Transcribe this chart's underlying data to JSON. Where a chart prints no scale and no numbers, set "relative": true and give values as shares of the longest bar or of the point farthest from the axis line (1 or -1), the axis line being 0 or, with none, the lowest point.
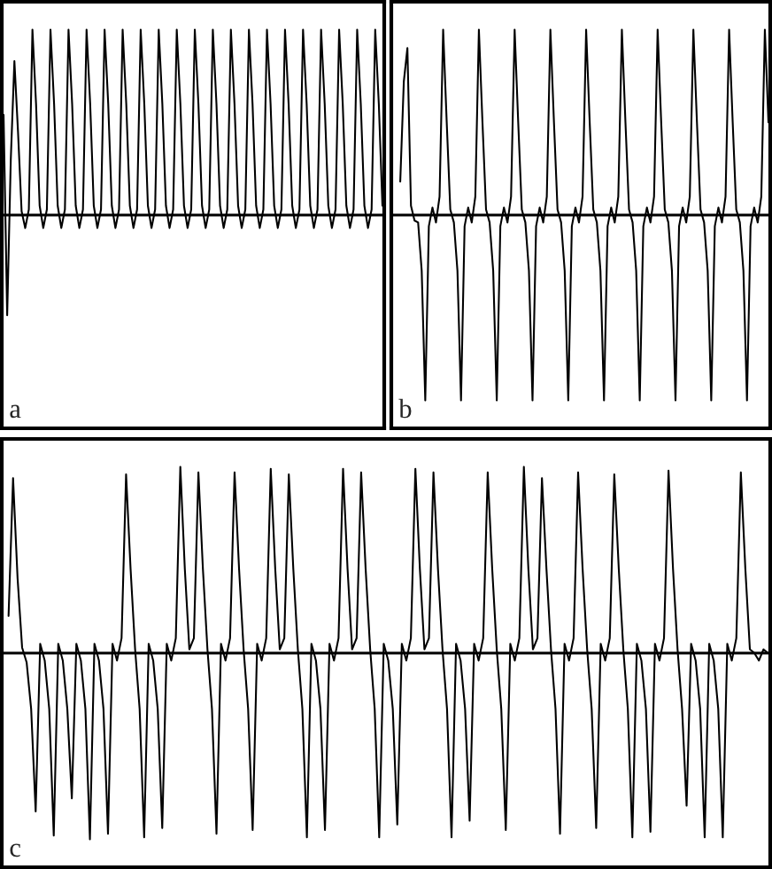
{
  "chart_data": [
    {
      "type": "line",
      "relative": true,
      "line_style": "solid",
      "annotations": [
        "a"
      ],
      "categories": [
        null,
        null,
        null,
        null,
        null,
        null,
        null,
        null,
        null,
        null,
        null,
        null,
        null,
        null,
        null,
        null,
        null,
        null,
        null,
        null,
        null,
        null,
        null,
        null,
        null,
        null,
        null,
        null,
        null,
        null,
        null,
        null,
        null,
        null,
        null,
        null,
        null,
        null,
        null,
        null,
        null,
        null,
        null,
        null,
        null,
        null,
        null,
        null,
        null,
        null,
        null,
        null,
        null,
        null,
        null,
        null,
        null,
        null,
        null,
        null,
        null,
        null,
        null,
        null,
        null,
        null,
        null,
        null,
        null,
        null,
        null,
        null,
        null,
        null,
        null,
        null,
        null,
        null,
        null,
        null,
        null,
        null,
        null,
        null,
        null,
        null,
        null,
        null,
        null,
        null,
        null,
        null,
        null,
        null,
        null,
        null,
        null,
        null,
        null,
        null,
        null,
        null,
        null,
        null,
        null,
        null
      ],
      "series": [
        {
          "color": "#000000",
          "values": [
            0.54,
            -0.54,
            0.3,
            0.83,
            0.45,
            0.02,
            -0.07,
            0.03,
            1.0,
            0.6,
            0.05,
            -0.07,
            0.03,
            1.0,
            0.6,
            0.05,
            -0.07,
            0.03,
            1.0,
            0.6,
            0.05,
            -0.07,
            0.03,
            1.0,
            0.6,
            0.05,
            -0.07,
            0.03,
            1.0,
            0.6,
            0.05,
            -0.07,
            0.03,
            1.0,
            0.6,
            0.05,
            -0.07,
            0.03,
            1.0,
            0.6,
            0.05,
            -0.07,
            0.03,
            1.0,
            0.6,
            0.05,
            -0.07,
            0.03,
            1.0,
            0.6,
            0.05,
            -0.07,
            0.03,
            1.0,
            0.6,
            0.05,
            -0.07,
            0.03,
            1.0,
            0.6,
            0.05,
            -0.07,
            0.03,
            1.0,
            0.6,
            0.05,
            -0.07,
            0.03,
            1.0,
            0.6,
            0.05,
            -0.07,
            0.03,
            1.0,
            0.6,
            0.05,
            -0.07,
            0.03,
            1.0,
            0.6,
            0.05,
            -0.07,
            0.03,
            1.0,
            0.6,
            0.05,
            -0.07,
            0.03,
            1.0,
            0.6,
            0.05,
            -0.07,
            0.03,
            1.0,
            0.6,
            0.05,
            -0.07,
            0.03,
            1.0,
            0.6,
            0.05,
            -0.07,
            0.03,
            1.0,
            0.6,
            0.05
          ]
        }
      ],
      "ref_lines": [
        {
          "axis": "y",
          "value": 0,
          "color": "#000000"
        }
      ]
    },
    {
      "type": "line",
      "relative": true,
      "line_style": "solid",
      "annotations": [
        "b"
      ],
      "categories": [
        null,
        null,
        null,
        null,
        null,
        null,
        null,
        null,
        null,
        null,
        null,
        null,
        null,
        null,
        null,
        null,
        null,
        null,
        null,
        null,
        null,
        null,
        null,
        null,
        null,
        null,
        null,
        null,
        null,
        null,
        null,
        null,
        null,
        null,
        null,
        null,
        null,
        null,
        null,
        null,
        null,
        null,
        null,
        null,
        null,
        null,
        null,
        null,
        null,
        null,
        null,
        null,
        null,
        null,
        null,
        null,
        null,
        null,
        null,
        null,
        null,
        null,
        null,
        null,
        null,
        null,
        null,
        null,
        null,
        null,
        null,
        null,
        null,
        null,
        null,
        null,
        null,
        null,
        null,
        null,
        null,
        null,
        null,
        null,
        null,
        null,
        null,
        null,
        null,
        null,
        null,
        null,
        null,
        null,
        null,
        null,
        null,
        null,
        null,
        null,
        null,
        null,
        null,
        null,
        null,
        null
      ],
      "series": [
        {
          "color": "#000000",
          "values": [
            null,
            null,
            0.18,
            0.72,
            0.9,
            0.05,
            -0.03,
            -0.04,
            -0.3,
            -1.0,
            -0.06,
            0.04,
            -0.04,
            0.1,
            1.0,
            0.5,
            0.03,
            -0.04,
            -0.3,
            -1.0,
            -0.06,
            0.04,
            -0.04,
            0.1,
            1.0,
            0.5,
            0.03,
            -0.04,
            -0.3,
            -1.0,
            -0.06,
            0.04,
            -0.04,
            0.1,
            1.0,
            0.5,
            0.03,
            -0.04,
            -0.3,
            -1.0,
            -0.06,
            0.04,
            -0.04,
            0.1,
            1.0,
            0.5,
            0.03,
            -0.04,
            -0.3,
            -1.0,
            -0.06,
            0.04,
            -0.04,
            0.1,
            1.0,
            0.5,
            0.03,
            -0.04,
            -0.3,
            -1.0,
            -0.06,
            0.04,
            -0.04,
            0.1,
            1.0,
            0.5,
            0.03,
            -0.04,
            -0.3,
            -1.0,
            -0.06,
            0.04,
            -0.04,
            0.1,
            1.0,
            0.5,
            0.03,
            -0.04,
            -0.3,
            -1.0,
            -0.06,
            0.04,
            -0.04,
            0.1,
            1.0,
            0.5,
            0.03,
            -0.04,
            -0.3,
            -1.0,
            -0.06,
            0.04,
            -0.04,
            0.1,
            1.0,
            0.5,
            0.03,
            -0.04,
            -0.3,
            -1.0,
            -0.06,
            0.04,
            -0.04,
            0.1,
            1.0,
            0.5
          ]
        }
      ],
      "ref_lines": [
        {
          "axis": "y",
          "value": 0,
          "color": "#000000"
        }
      ]
    },
    {
      "type": "line",
      "relative": true,
      "line_style": "solid",
      "annotations": [
        "c"
      ],
      "categories": [
        null,
        null,
        null,
        null,
        null,
        null,
        null,
        null,
        null,
        null,
        null,
        null,
        null,
        null,
        null,
        null,
        null,
        null,
        null,
        null,
        null,
        null,
        null,
        null,
        null,
        null,
        null,
        null,
        null,
        null,
        null,
        null,
        null,
        null,
        null,
        null,
        null,
        null,
        null,
        null,
        null,
        null,
        null,
        null,
        null,
        null,
        null,
        null,
        null,
        null,
        null,
        null,
        null,
        null,
        null,
        null,
        null,
        null,
        null,
        null,
        null,
        null,
        null,
        null,
        null,
        null,
        null,
        null,
        null,
        null,
        null,
        null,
        null,
        null,
        null,
        null,
        null,
        null,
        null,
        null,
        null,
        null,
        null,
        null,
        null,
        null,
        null,
        null,
        null,
        null,
        null,
        null,
        null,
        null,
        null,
        null,
        null,
        null,
        null,
        null,
        null,
        null,
        null,
        null,
        null,
        null,
        null,
        null,
        null,
        null,
        null,
        null,
        null,
        null,
        null,
        null,
        null,
        null,
        null,
        null,
        null,
        null,
        null,
        null,
        null,
        null,
        null,
        null,
        null,
        null,
        null,
        null,
        null,
        null,
        null,
        null,
        null,
        null,
        null,
        null,
        null,
        null,
        null,
        null,
        null,
        null,
        null,
        null,
        null,
        null,
        null,
        null,
        null,
        null,
        null,
        null,
        null,
        null,
        null,
        null,
        null,
        null,
        null,
        null,
        null,
        null,
        null,
        null,
        null,
        null
      ],
      "series": [
        {
          "color": "#000000",
          "values": [
            null,
            0.2,
            0.94,
            0.4,
            0.03,
            -0.05,
            -0.3,
            -0.85,
            0.05,
            -0.04,
            -0.3,
            -0.98,
            0.05,
            -0.04,
            -0.3,
            -0.78,
            0.05,
            -0.04,
            -0.3,
            -1.0,
            0.05,
            -0.04,
            -0.3,
            -0.97,
            0.05,
            -0.04,
            0.08,
            0.96,
            0.45,
            0.02,
            -0.3,
            -0.99,
            0.05,
            -0.04,
            -0.3,
            -0.94,
            0.05,
            -0.04,
            0.08,
            1.0,
            0.45,
            0.02,
            0.08,
            0.97,
            0.45,
            0.02,
            -0.3,
            -0.97,
            0.05,
            -0.04,
            0.08,
            0.97,
            0.45,
            0.02,
            -0.3,
            -0.95,
            0.05,
            -0.04,
            0.08,
            0.99,
            0.45,
            0.02,
            0.08,
            0.96,
            0.45,
            0.02,
            -0.3,
            -0.99,
            0.05,
            -0.04,
            -0.3,
            -0.95,
            0.05,
            -0.04,
            0.08,
            0.99,
            0.45,
            0.02,
            0.08,
            0.97,
            0.45,
            0.02,
            -0.3,
            -0.99,
            0.05,
            -0.04,
            -0.3,
            -0.92,
            0.05,
            -0.04,
            0.08,
            0.99,
            0.45,
            0.02,
            0.08,
            0.97,
            0.45,
            0.02,
            -0.3,
            -0.99,
            0.05,
            -0.04,
            -0.3,
            -0.9,
            0.05,
            -0.04,
            0.08,
            0.97,
            0.45,
            0.02,
            -0.3,
            -0.95,
            0.05,
            -0.04,
            0.08,
            1.0,
            0.45,
            0.02,
            0.08,
            0.94,
            0.45,
            0.02,
            -0.3,
            -0.97,
            0.05,
            -0.04,
            0.08,
            0.97,
            0.45,
            0.02,
            -0.3,
            -0.94,
            0.05,
            -0.04,
            0.08,
            0.96,
            0.45,
            0.02,
            -0.3,
            -0.99,
            0.05,
            -0.04,
            -0.3,
            -0.96,
            0.05,
            -0.04,
            0.08,
            0.98,
            0.45,
            0.02,
            -0.3,
            -0.82,
            0.05,
            -0.04,
            -0.3,
            -0.99,
            0.05,
            -0.04,
            -0.3,
            -0.99,
            0.05,
            -0.04,
            0.08,
            0.97,
            0.45,
            0.02,
            0.0,
            -0.04,
            0.02,
            0.0
          ]
        }
      ],
      "ref_lines": [
        {
          "axis": "y",
          "value": 0,
          "color": "#000000"
        }
      ]
    }
  ]
}
